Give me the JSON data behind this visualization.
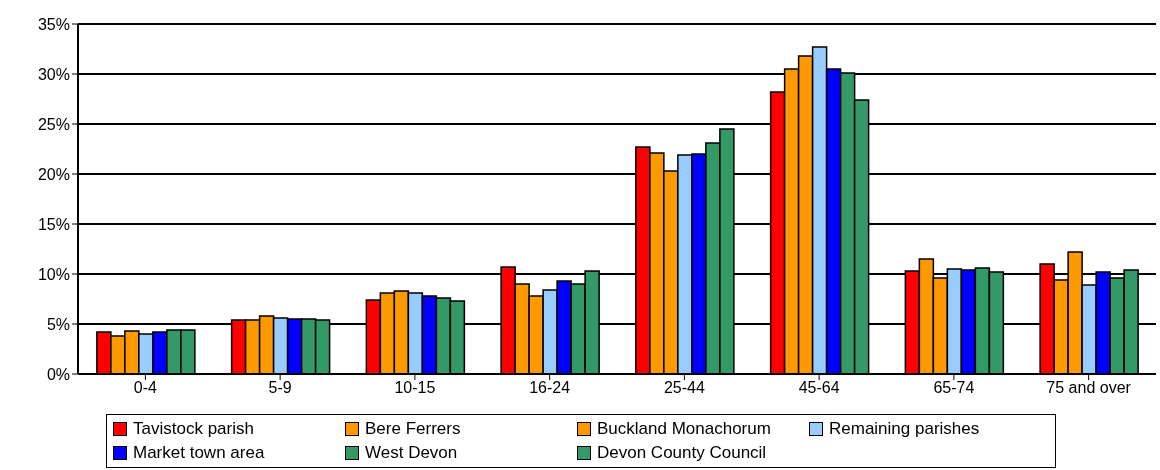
{
  "chart_data": {
    "type": "bar",
    "categories": [
      "0-4",
      "5-9",
      "10-15",
      "16-24",
      "25-44",
      "45-64",
      "65-74",
      "75 and over"
    ],
    "series": [
      {
        "name": "Tavistock parish",
        "color": "#ff0000",
        "values": [
          4.2,
          5.4,
          7.4,
          10.7,
          22.7,
          28.2,
          10.3,
          11.0
        ]
      },
      {
        "name": "Bere Ferrers",
        "color": "#ff9900",
        "values": [
          3.8,
          5.4,
          8.1,
          9.0,
          22.1,
          30.5,
          11.5,
          9.4
        ]
      },
      {
        "name": "Buckland Monachorum",
        "color": "#ff9900",
        "values": [
          4.3,
          5.8,
          8.3,
          7.8,
          20.3,
          31.8,
          9.6,
          12.2
        ]
      },
      {
        "name": "Remaining parishes",
        "color": "#99ccff",
        "values": [
          4.0,
          5.6,
          8.1,
          8.4,
          21.9,
          32.7,
          10.5,
          8.9
        ]
      },
      {
        "name": "Market town area",
        "color": "#0000ff",
        "values": [
          4.2,
          5.5,
          7.8,
          9.3,
          22.0,
          30.5,
          10.4,
          10.2
        ]
      },
      {
        "name": "West Devon",
        "color": "#339966",
        "values": [
          4.4,
          5.5,
          7.6,
          9.0,
          23.1,
          30.1,
          10.6,
          9.6
        ]
      },
      {
        "name": "Devon County Council",
        "color": "#339966",
        "values": [
          4.4,
          5.4,
          7.3,
          10.3,
          24.5,
          27.4,
          10.2,
          10.4
        ]
      }
    ],
    "ylim": [
      0,
      35
    ],
    "yticks": [
      {
        "value": 0,
        "label": "0%"
      },
      {
        "value": 5,
        "label": "5%"
      },
      {
        "value": 10,
        "label": "10%"
      },
      {
        "value": 15,
        "label": "15%"
      },
      {
        "value": 20,
        "label": "20%"
      },
      {
        "value": 25,
        "label": "25%"
      },
      {
        "value": 30,
        "label": "30%"
      },
      {
        "value": 35,
        "label": "35%"
      }
    ],
    "grid": "y",
    "legend": "bottom"
  }
}
